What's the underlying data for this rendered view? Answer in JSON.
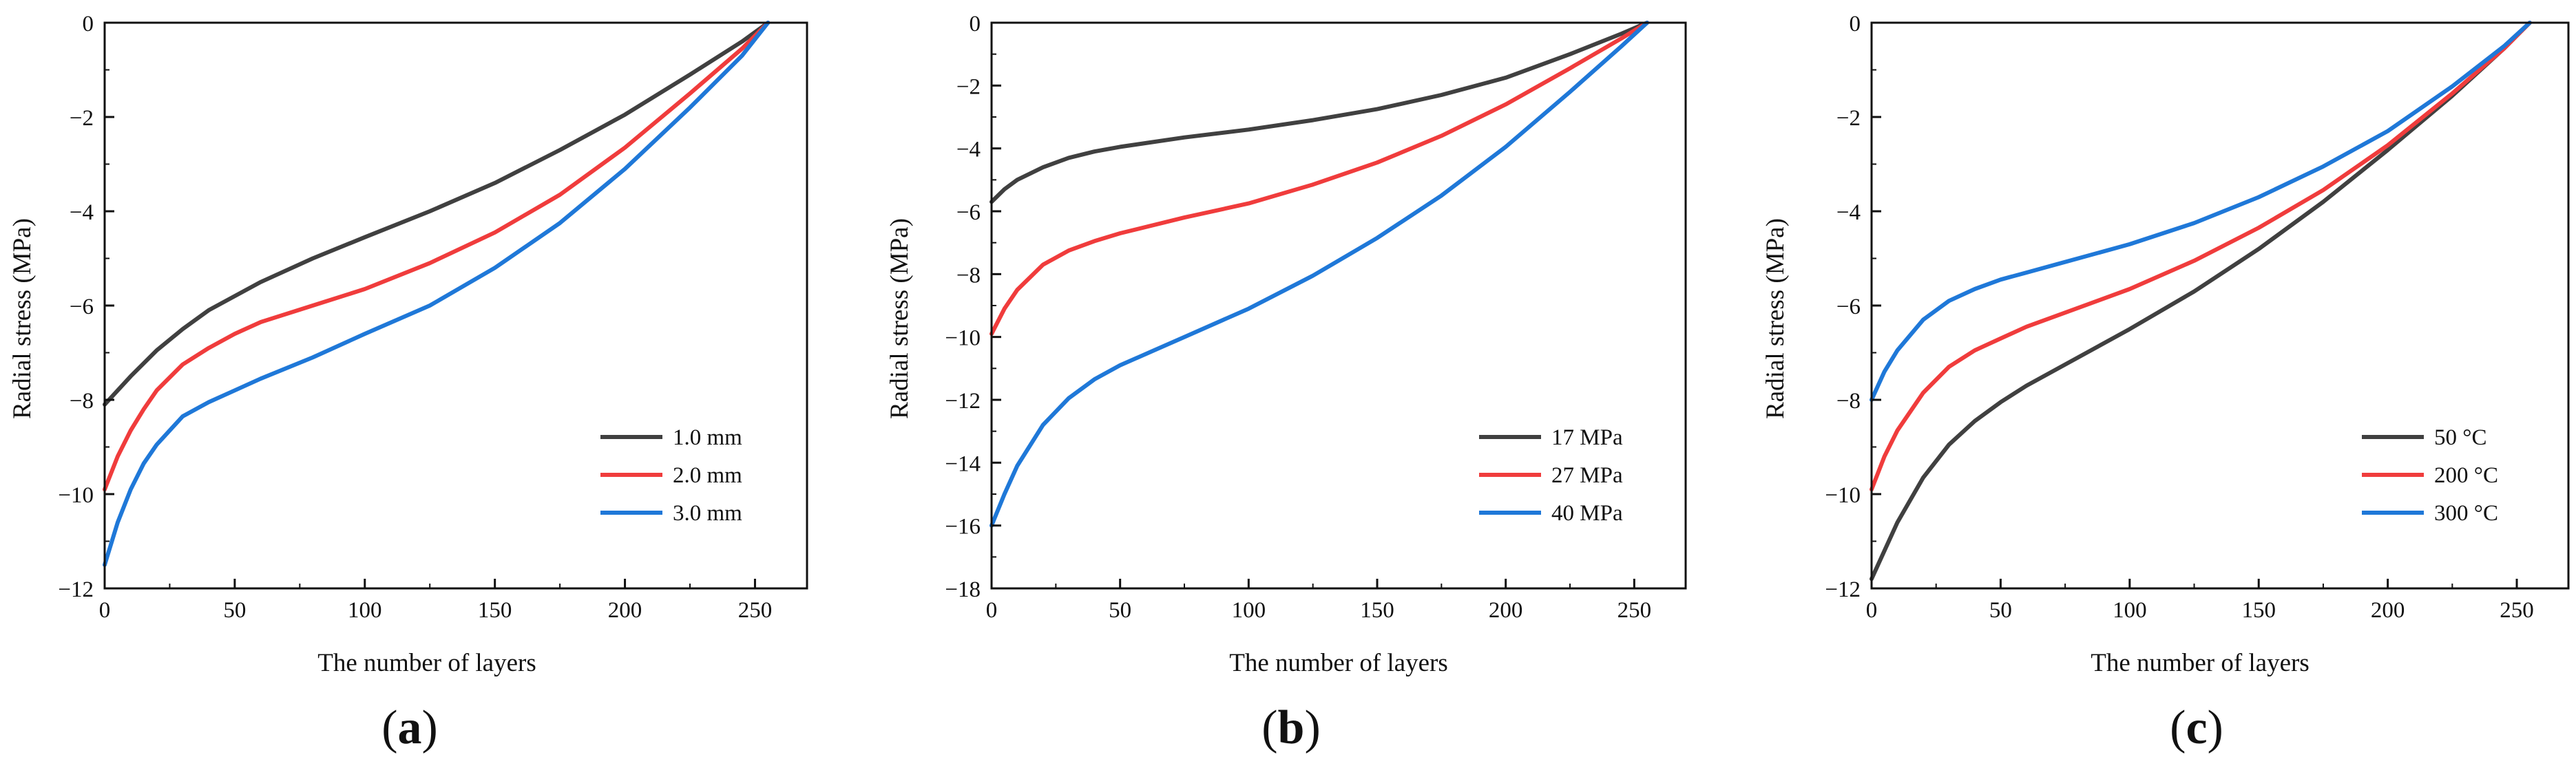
{
  "colors": {
    "black": "#404040",
    "red": "#f03c3c",
    "blue": "#1f78d8",
    "axis": "#111111"
  },
  "chart_data": [
    {
      "type": "line",
      "panel_label": "a",
      "xlabel": "The number of layers",
      "ylabel": "Radial stress (MPa)",
      "xlim": [
        0,
        270
      ],
      "ylim": [
        -12,
        0
      ],
      "xticks": [
        0,
        50,
        100,
        150,
        200,
        250
      ],
      "yticks": [
        0,
        -2,
        -4,
        -6,
        -8,
        -10,
        -12
      ],
      "ytick_labels": [
        "0",
        "−2",
        "−4",
        "−6",
        "−8",
        "−10",
        "−12"
      ],
      "legend_position": "lower-right",
      "series": [
        {
          "name": "1.0 mm",
          "color": "#404040",
          "x": [
            0,
            10,
            20,
            30,
            40,
            50,
            60,
            80,
            100,
            125,
            150,
            175,
            200,
            225,
            245,
            255
          ],
          "y": [
            -8.1,
            -7.5,
            -6.95,
            -6.5,
            -6.1,
            -5.8,
            -5.5,
            -5.0,
            -4.55,
            -4.0,
            -3.4,
            -2.7,
            -1.95,
            -1.1,
            -0.4,
            0
          ]
        },
        {
          "name": "2.0 mm",
          "color": "#f03c3c",
          "x": [
            0,
            5,
            10,
            15,
            20,
            30,
            40,
            50,
            60,
            80,
            100,
            125,
            150,
            175,
            200,
            225,
            245,
            255
          ],
          "y": [
            -9.9,
            -9.2,
            -8.65,
            -8.2,
            -7.8,
            -7.25,
            -6.9,
            -6.6,
            -6.35,
            -6.0,
            -5.65,
            -5.1,
            -4.45,
            -3.65,
            -2.65,
            -1.5,
            -0.55,
            0
          ]
        },
        {
          "name": "3.0 mm",
          "color": "#1f78d8",
          "x": [
            0,
            5,
            10,
            15,
            20,
            30,
            40,
            50,
            60,
            80,
            100,
            125,
            150,
            175,
            200,
            225,
            245,
            255
          ],
          "y": [
            -11.5,
            -10.6,
            -9.9,
            -9.35,
            -8.95,
            -8.35,
            -8.05,
            -7.8,
            -7.55,
            -7.1,
            -6.6,
            -6.0,
            -5.2,
            -4.25,
            -3.1,
            -1.8,
            -0.7,
            0
          ]
        }
      ]
    },
    {
      "type": "line",
      "panel_label": "b",
      "xlabel": "The number of layers",
      "ylabel": "Radial stress (MPa)",
      "xlim": [
        0,
        270
      ],
      "ylim": [
        -18,
        0
      ],
      "xticks": [
        0,
        50,
        100,
        150,
        200,
        250
      ],
      "yticks": [
        0,
        -2,
        -4,
        -6,
        -8,
        -10,
        -12,
        -14,
        -16,
        -18
      ],
      "ytick_labels": [
        "0",
        "−2",
        "−4",
        "−6",
        "−8",
        "−10",
        "−12",
        "−14",
        "−16",
        "−18"
      ],
      "legend_position": "lower-right",
      "series": [
        {
          "name": "17 MPa",
          "color": "#404040",
          "x": [
            0,
            5,
            10,
            20,
            30,
            40,
            50,
            75,
            100,
            125,
            150,
            175,
            200,
            225,
            245,
            255
          ],
          "y": [
            -5.7,
            -5.3,
            -5.0,
            -4.6,
            -4.3,
            -4.1,
            -3.95,
            -3.65,
            -3.4,
            -3.1,
            -2.75,
            -2.3,
            -1.75,
            -1.0,
            -0.35,
            0
          ]
        },
        {
          "name": "27 MPa",
          "color": "#f03c3c",
          "x": [
            0,
            5,
            10,
            20,
            30,
            40,
            50,
            75,
            100,
            125,
            150,
            175,
            200,
            225,
            245,
            255
          ],
          "y": [
            -9.9,
            -9.1,
            -8.5,
            -7.7,
            -7.25,
            -6.95,
            -6.7,
            -6.2,
            -5.75,
            -5.15,
            -4.45,
            -3.6,
            -2.6,
            -1.45,
            -0.5,
            0
          ]
        },
        {
          "name": "40 MPa",
          "color": "#1f78d8",
          "x": [
            0,
            5,
            10,
            20,
            30,
            40,
            50,
            75,
            100,
            125,
            150,
            175,
            200,
            225,
            245,
            255
          ],
          "y": [
            -16.0,
            -15.0,
            -14.1,
            -12.8,
            -11.95,
            -11.35,
            -10.9,
            -10.0,
            -9.1,
            -8.05,
            -6.85,
            -5.5,
            -3.95,
            -2.2,
            -0.75,
            0
          ]
        }
      ]
    },
    {
      "type": "line",
      "panel_label": "c",
      "xlabel": "The number of layers",
      "ylabel": "Radial stress (MPa)",
      "xlim": [
        0,
        270
      ],
      "ylim": [
        -12,
        0
      ],
      "xticks": [
        0,
        50,
        100,
        150,
        200,
        250
      ],
      "yticks": [
        0,
        -2,
        -4,
        -6,
        -8,
        -10,
        -12
      ],
      "ytick_labels": [
        "0",
        "−2",
        "−4",
        "−6",
        "−8",
        "−10",
        "−12"
      ],
      "legend_position": "lower-right",
      "series": [
        {
          "name": "50 °C",
          "color": "#404040",
          "x": [
            0,
            5,
            10,
            20,
            30,
            40,
            50,
            60,
            80,
            100,
            125,
            150,
            175,
            200,
            225,
            245,
            255
          ],
          "y": [
            -11.8,
            -11.2,
            -10.6,
            -9.65,
            -8.95,
            -8.45,
            -8.05,
            -7.7,
            -7.1,
            -6.5,
            -5.7,
            -4.8,
            -3.8,
            -2.7,
            -1.55,
            -0.55,
            0
          ]
        },
        {
          "name": "200 °C",
          "color": "#f03c3c",
          "x": [
            0,
            5,
            10,
            20,
            30,
            40,
            50,
            60,
            80,
            100,
            125,
            150,
            175,
            200,
            225,
            245,
            255
          ],
          "y": [
            -9.9,
            -9.2,
            -8.65,
            -7.85,
            -7.3,
            -6.95,
            -6.7,
            -6.45,
            -6.05,
            -5.65,
            -5.05,
            -4.35,
            -3.55,
            -2.6,
            -1.5,
            -0.55,
            0
          ]
        },
        {
          "name": "300 °C",
          "color": "#1f78d8",
          "x": [
            0,
            5,
            10,
            20,
            30,
            40,
            50,
            60,
            80,
            100,
            125,
            150,
            175,
            200,
            225,
            245,
            255
          ],
          "y": [
            -8.0,
            -7.4,
            -6.95,
            -6.3,
            -5.9,
            -5.65,
            -5.45,
            -5.3,
            -5.0,
            -4.7,
            -4.25,
            -3.7,
            -3.05,
            -2.3,
            -1.35,
            -0.5,
            0
          ]
        }
      ]
    }
  ]
}
